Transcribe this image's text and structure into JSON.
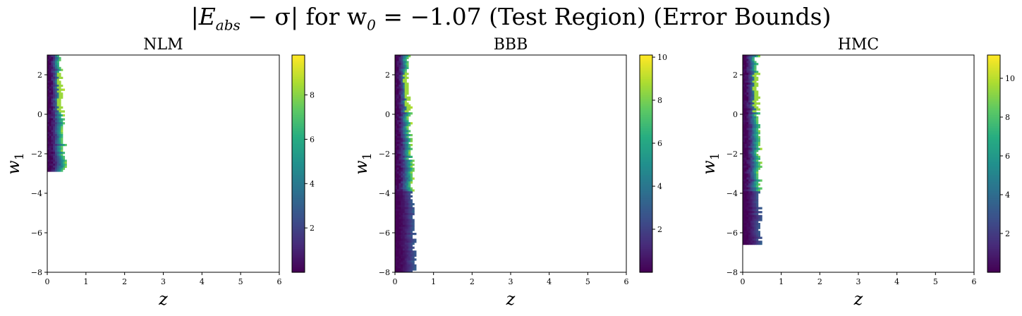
{
  "figure": {
    "title_parts": [
      "|E",
      "abs",
      " − σ| for w",
      "0",
      " = −1.07 (Test Region) (Error Bounds)"
    ]
  },
  "chart_data": [
    {
      "type": "heatmap",
      "title": "NLM",
      "xlabel": "z",
      "ylabel": "w1",
      "xlim": [
        0,
        6
      ],
      "ylim": [
        -8,
        3
      ],
      "xticks": [
        0,
        1,
        2,
        3,
        4,
        5,
        6
      ],
      "yticks": [
        -8,
        -6,
        -4,
        -2,
        0,
        2
      ],
      "colorbar": {
        "cmap": "viridis",
        "min": 0,
        "max": 9.8,
        "ticks": [
          2,
          4,
          6,
          8
        ]
      },
      "region": {
        "w1_min": -2.9,
        "w1_max": 3,
        "z_max_at_top": 0.3,
        "z_max_at_bottom": 0.45
      },
      "grid": false
    },
    {
      "type": "heatmap",
      "title": "BBB",
      "xlabel": "z",
      "ylabel": "w1",
      "xlim": [
        0,
        6
      ],
      "ylim": [
        -8,
        3
      ],
      "xticks": [
        0,
        1,
        2,
        3,
        4,
        5,
        6
      ],
      "yticks": [
        -8,
        -6,
        -4,
        -2,
        0,
        2
      ],
      "colorbar": {
        "cmap": "viridis",
        "min": 0,
        "max": 10.1,
        "ticks": [
          2,
          4,
          6,
          8,
          10
        ]
      },
      "region": {
        "w1_min": -8,
        "w1_max": 3,
        "z_max_at_top": 0.3,
        "z_max_at_bottom": 0.5
      },
      "grid": false
    },
    {
      "type": "heatmap",
      "title": "HMC",
      "xlabel": "z",
      "ylabel": "w1",
      "xlim": [
        0,
        6
      ],
      "ylim": [
        -8,
        3
      ],
      "xticks": [
        0,
        1,
        2,
        3,
        4,
        5,
        6
      ],
      "yticks": [
        -8,
        -6,
        -4,
        -2,
        0,
        2
      ],
      "colorbar": {
        "cmap": "viridis",
        "min": 0,
        "max": 11.2,
        "ticks": [
          2,
          4,
          6,
          8,
          10
        ]
      },
      "region": {
        "w1_min": -6.6,
        "w1_max": 3,
        "z_max_at_top": 0.35,
        "z_max_at_bottom": 0.45
      },
      "grid": false
    }
  ]
}
